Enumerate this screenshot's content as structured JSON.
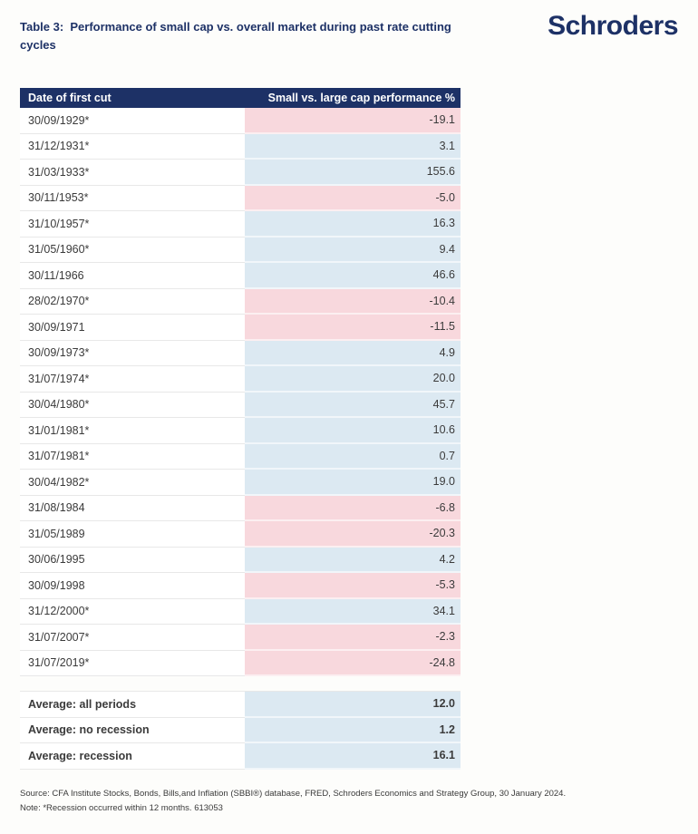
{
  "logo": {
    "text": "Schroders"
  },
  "colors": {
    "brand_navy": "#1d3166",
    "positive_bg": "#dce9f2",
    "negative_bg": "#f8d8dd",
    "row_divider": "#e8e8e8",
    "text_dark": "#3b3b3b",
    "page_bg": "#fdfdfb"
  },
  "chart_data": {
    "type": "table",
    "title": "Table 3:  Performance of small cap vs. overall market during past rate cutting cycles",
    "columns": [
      "Date of first cut",
      "Small vs. large cap performance %"
    ],
    "rows": [
      {
        "date": "30/09/1929*",
        "value": "-19.1",
        "negative": true
      },
      {
        "date": "31/12/1931*",
        "value": "3.1",
        "negative": false
      },
      {
        "date": "31/03/1933*",
        "value": "155.6",
        "negative": false
      },
      {
        "date": "30/11/1953*",
        "value": "-5.0",
        "negative": true
      },
      {
        "date": "31/10/1957*",
        "value": "16.3",
        "negative": false
      },
      {
        "date": "31/05/1960*",
        "value": "9.4",
        "negative": false
      },
      {
        "date": "30/11/1966",
        "value": "46.6",
        "negative": false
      },
      {
        "date": "28/02/1970*",
        "value": "-10.4",
        "negative": true
      },
      {
        "date": "30/09/1971",
        "value": "-11.5",
        "negative": true
      },
      {
        "date": "30/09/1973*",
        "value": "4.9",
        "negative": false
      },
      {
        "date": "31/07/1974*",
        "value": "20.0",
        "negative": false
      },
      {
        "date": "30/04/1980*",
        "value": "45.7",
        "negative": false
      },
      {
        "date": "31/01/1981*",
        "value": "10.6",
        "negative": false
      },
      {
        "date": "31/07/1981*",
        "value": "0.7",
        "negative": false
      },
      {
        "date": "30/04/1982*",
        "value": "19.0",
        "negative": false
      },
      {
        "date": "31/08/1984",
        "value": "-6.8",
        "negative": true
      },
      {
        "date": "31/05/1989",
        "value": "-20.3",
        "negative": true
      },
      {
        "date": "30/06/1995",
        "value": "4.2",
        "negative": false
      },
      {
        "date": "30/09/1998",
        "value": "-5.3",
        "negative": true
      },
      {
        "date": "31/12/2000*",
        "value": "34.1",
        "negative": false
      },
      {
        "date": "31/07/2007*",
        "value": "-2.3",
        "negative": true
      },
      {
        "date": "31/07/2019*",
        "value": "-24.8",
        "negative": true
      }
    ],
    "averages": [
      {
        "label": "Average: all periods",
        "value": "12.0"
      },
      {
        "label": "Average: no recession",
        "value": "1.2"
      },
      {
        "label": "Average: recession",
        "value": "16.1"
      }
    ]
  },
  "footer": {
    "source": "Source: CFA Institute Stocks, Bonds, Bills,and Inflation (SBBI®) database, FRED, Schroders Economics and Strategy Group, 30 January 2024.",
    "note": "Note: *Recession occurred within 12 months. 613053"
  }
}
